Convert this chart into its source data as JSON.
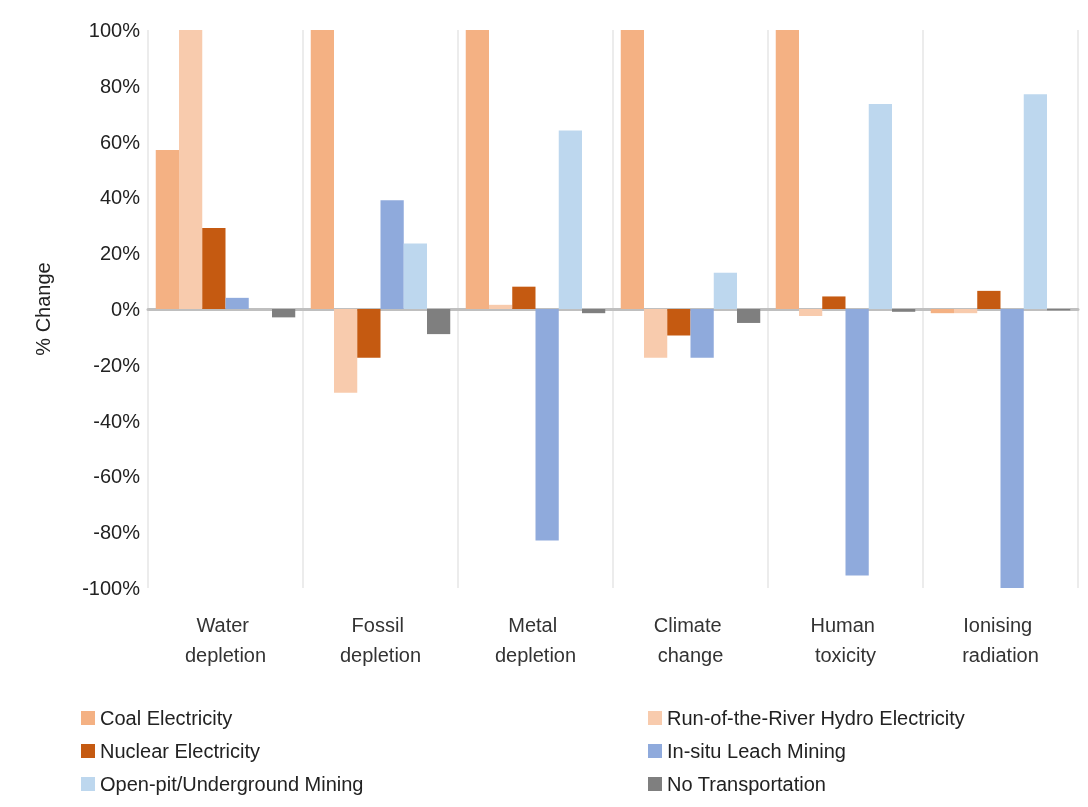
{
  "chart_data": {
    "type": "bar",
    "ylabel": "% Change",
    "categories": [
      "Water depletion",
      "Fossil depletion",
      "Metal depletion",
      "Climate change",
      "Human toxicity",
      "Ionising radiation"
    ],
    "series": [
      {
        "name": "Coal Electricity",
        "color": "#f4b183",
        "values": [
          57,
          100,
          100,
          100,
          100,
          -1.5
        ]
      },
      {
        "name": "Run-of-the-River Hydro Electricity",
        "color": "#f8cbad",
        "values": [
          100,
          -30,
          1.5,
          -17.5,
          -2.5,
          -1.5
        ]
      },
      {
        "name": "Nuclear Electricity",
        "color": "#c55a11",
        "values": [
          29,
          -17.5,
          8,
          -9.5,
          4.5,
          6.5
        ]
      },
      {
        "name": "In-situ Leach Mining",
        "color": "#8faadc",
        "values": [
          4,
          39,
          -83,
          -17.5,
          -95.5,
          -100
        ]
      },
      {
        "name": "Open-pit/Underground Mining",
        "color": "#bdd7ee",
        "values": [
          null,
          23.5,
          64,
          13,
          73.5,
          77
        ]
      },
      {
        "name": "No Transportation",
        "color": "#7f7f7f",
        "values": [
          -3,
          -9,
          -1.5,
          -5,
          -1,
          -0.5
        ]
      }
    ],
    "ylim": [
      -100,
      100
    ],
    "yticks": [
      {
        "value": -100,
        "label": "-100%"
      },
      {
        "value": -80,
        "label": "-80%"
      },
      {
        "value": -60,
        "label": "-60%"
      },
      {
        "value": -40,
        "label": "-40%"
      },
      {
        "value": -20,
        "label": "-20%"
      },
      {
        "value": 0,
        "label": "0%"
      },
      {
        "value": 20,
        "label": "20%"
      },
      {
        "value": 40,
        "label": "40%"
      },
      {
        "value": 60,
        "label": "60%"
      },
      {
        "value": 80,
        "label": "80%"
      },
      {
        "value": 100,
        "label": "100%"
      }
    ],
    "grid": "x",
    "legend": "bottom"
  }
}
